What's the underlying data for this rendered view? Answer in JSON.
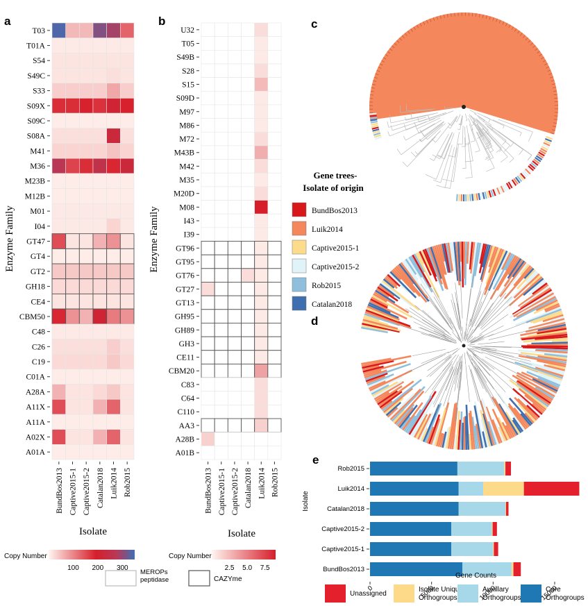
{
  "panels": {
    "a": "a",
    "b": "b",
    "c": "c",
    "d": "d",
    "e": "e"
  },
  "heatmap_common": {
    "x_title": "Isolate",
    "y_title": "Enzyme Family",
    "isolates": [
      "BundBos2013",
      "Captive2015-1",
      "Captive2015-2",
      "Catalan2018",
      "Luik2014",
      "Rob2015"
    ]
  },
  "legends": {
    "a": {
      "title": "Copy Number",
      "ticks": [
        100,
        200,
        300
      ],
      "range": [
        0,
        350
      ],
      "box_label": "MEROPs peptidase"
    },
    "b": {
      "title": "Copy Number",
      "ticks": [
        2.5,
        5.0,
        7.5
      ],
      "tick_labels": [
        "2.5",
        "5.0",
        "7.5"
      ],
      "range": [
        0,
        9
      ],
      "box_label": "CAZYme"
    },
    "gene_trees": {
      "title_line1": "Gene trees-",
      "title_line2": "Isolate of origin",
      "items": [
        {
          "label": "BundBos2013",
          "color": "#d7191c"
        },
        {
          "label": "Luik2014",
          "color": "#f4875b"
        },
        {
          "label": "Captive2015-1",
          "color": "#fddb8c"
        },
        {
          "label": "Captive2015-2",
          "color": "#e0f3f8"
        },
        {
          "label": "Rob2015",
          "color": "#8fbfdc"
        },
        {
          "label": "Catalan2018",
          "color": "#3f6fae"
        }
      ]
    },
    "e": {
      "items": [
        {
          "label1": "Unassigned",
          "label2": "",
          "color": "#e3202c"
        },
        {
          "label1": "Isolate Unique",
          "label2": "Orthogroups",
          "color": "#fdd98a"
        },
        {
          "label1": "Auxillary",
          "label2": "Orthogroups",
          "color": "#a6d8ea"
        },
        {
          "label1": "Core",
          "label2": "Orthogroups",
          "color": "#1f78b4"
        }
      ]
    }
  },
  "chart_data": [
    {
      "type": "heatmap",
      "panel": "a",
      "xlabel": "Isolate",
      "ylabel": "Enzyme Family",
      "x": [
        "BundBos2013",
        "Captive2015-1",
        "Captive2015-2",
        "Catalan2018",
        "Luik2014",
        "Rob2015"
      ],
      "y": [
        "T03",
        "T01A",
        "S54",
        "S49C",
        "S33",
        "S09X",
        "S09C",
        "S08A",
        "M41",
        "M36",
        "M23B",
        "M12B",
        "M01",
        "I04",
        "GT47",
        "GT4",
        "GT2",
        "GH18",
        "CE4",
        "CBM50",
        "C48",
        "C26",
        "C19",
        "C01A",
        "A28A",
        "A11X",
        "A11A",
        "A02X",
        "A01A"
      ],
      "values": [
        [
          340,
          55,
          55,
          310,
          290,
          130
        ],
        [
          10,
          10,
          10,
          10,
          10,
          10
        ],
        [
          15,
          15,
          15,
          15,
          15,
          15
        ],
        [
          15,
          15,
          15,
          15,
          20,
          15
        ],
        [
          35,
          35,
          35,
          35,
          70,
          35
        ],
        [
          180,
          180,
          190,
          175,
          210,
          190
        ],
        [
          8,
          8,
          8,
          8,
          8,
          8
        ],
        [
          20,
          20,
          20,
          20,
          225,
          20
        ],
        [
          30,
          30,
          30,
          30,
          45,
          30
        ],
        [
          270,
          160,
          180,
          250,
          185,
          225
        ],
        [
          8,
          8,
          8,
          8,
          8,
          8
        ],
        [
          8,
          8,
          8,
          8,
          8,
          8
        ],
        [
          12,
          12,
          12,
          12,
          12,
          12
        ],
        [
          12,
          12,
          12,
          12,
          30,
          12
        ],
        [
          150,
          15,
          15,
          60,
          90,
          15
        ],
        [
          8,
          8,
          8,
          8,
          8,
          8
        ],
        [
          40,
          40,
          40,
          40,
          40,
          40
        ],
        [
          25,
          25,
          25,
          25,
          25,
          25
        ],
        [
          15,
          15,
          15,
          15,
          15,
          15
        ],
        [
          185,
          90,
          60,
          210,
          110,
          90
        ],
        [
          10,
          10,
          10,
          10,
          10,
          10
        ],
        [
          20,
          20,
          20,
          20,
          35,
          20
        ],
        [
          25,
          25,
          25,
          25,
          40,
          25
        ],
        [
          8,
          8,
          8,
          8,
          8,
          8
        ],
        [
          60,
          15,
          15,
          25,
          40,
          15
        ],
        [
          150,
          15,
          15,
          60,
          130,
          15
        ],
        [
          8,
          8,
          8,
          8,
          8,
          8
        ],
        [
          150,
          15,
          15,
          60,
          130,
          15
        ],
        [
          8,
          8,
          8,
          8,
          8,
          8
        ]
      ],
      "scale_max": 350,
      "framed_rows": [
        "GT47",
        "GT4",
        "GT2",
        "GH18",
        "CE4",
        "CBM50"
      ]
    },
    {
      "type": "heatmap",
      "panel": "b",
      "xlabel": "Isolate",
      "ylabel": "Enzyme Family",
      "x": [
        "BundBos2013",
        "Captive2015-1",
        "Captive2015-2",
        "Catalan2018",
        "Luik2014",
        "Rob2015"
      ],
      "y": [
        "U32",
        "T05",
        "S49B",
        "S28",
        "S15",
        "S09D",
        "M97",
        "M86",
        "M72",
        "M43B",
        "M42",
        "M35",
        "M20D",
        "M08",
        "I43",
        "I39",
        "GT96",
        "GT95",
        "GT76",
        "GT27",
        "GT13",
        "GH95",
        "GH89",
        "GH3",
        "CE11",
        "CBM20",
        "C83",
        "C64",
        "C110",
        "AA3",
        "A28B",
        "A01B"
      ],
      "values": [
        [
          0,
          0,
          0,
          0,
          1,
          0
        ],
        [
          0,
          0,
          0,
          0,
          0.5,
          0
        ],
        [
          0,
          0,
          0,
          0,
          0.5,
          0
        ],
        [
          0,
          0,
          0,
          0,
          1,
          0
        ],
        [
          0,
          0,
          0,
          0,
          2.5,
          0
        ],
        [
          0,
          0,
          0,
          0,
          0.5,
          0
        ],
        [
          0,
          0,
          0,
          0,
          0.5,
          0
        ],
        [
          0,
          0,
          0,
          0,
          0.5,
          0
        ],
        [
          0,
          0,
          0,
          0,
          1,
          0
        ],
        [
          0,
          0,
          0,
          0,
          3,
          0
        ],
        [
          0,
          0,
          0,
          0,
          1,
          0
        ],
        [
          0,
          0,
          0,
          0,
          0.5,
          0
        ],
        [
          0,
          0,
          0,
          0,
          1,
          0
        ],
        [
          0,
          0,
          0,
          0,
          9,
          0
        ],
        [
          0,
          0,
          0,
          0,
          0.5,
          0
        ],
        [
          0,
          0,
          0,
          0,
          0.5,
          0
        ],
        [
          0,
          0,
          0,
          0,
          0.5,
          0
        ],
        [
          0,
          0,
          0,
          0,
          0.5,
          0
        ],
        [
          0,
          0,
          0,
          1,
          0.5,
          0
        ],
        [
          1,
          0,
          0,
          0,
          0.5,
          0
        ],
        [
          0,
          0,
          0,
          0,
          0.5,
          0
        ],
        [
          0,
          0,
          0,
          0,
          0.5,
          0
        ],
        [
          0,
          0,
          0,
          0,
          0.5,
          0
        ],
        [
          0,
          0,
          0,
          0,
          0.5,
          0
        ],
        [
          0,
          0,
          0,
          0,
          0.5,
          0
        ],
        [
          0,
          0,
          0,
          0,
          3.5,
          0
        ],
        [
          0,
          0,
          0,
          0,
          1,
          0
        ],
        [
          0,
          0,
          0,
          0,
          1,
          0
        ],
        [
          0,
          0,
          0,
          0,
          1,
          0
        ],
        [
          0,
          0,
          0,
          0,
          1.5,
          0
        ],
        [
          1.5,
          0,
          0,
          0,
          0,
          0
        ],
        [
          0,
          0,
          0,
          0,
          0,
          0
        ]
      ],
      "scale_max": 9,
      "framed_rows": [
        "GT96",
        "GT95",
        "GT76",
        "GT27",
        "GT13",
        "GH95",
        "GH89",
        "GH3",
        "CE11",
        "CBM20",
        "AA3"
      ]
    },
    {
      "type": "bar",
      "panel": "e",
      "orientation": "horizontal",
      "stacked": true,
      "xlabel": "Gene Counts",
      "ylabel": "Isolate",
      "categories": [
        "Rob2015",
        "Luik2014",
        "Catalan2018",
        "Captive2015-2",
        "Captive2015-1",
        "BundBos2013"
      ],
      "xlim": [
        0,
        17200
      ],
      "xticks": [
        0,
        5000,
        10000,
        15000
      ],
      "series": [
        {
          "name": "Core Orthogroups",
          "color": "#1f78b4",
          "values": [
            7100,
            7200,
            7200,
            6600,
            6600,
            7500
          ]
        },
        {
          "name": "Auxillary Orthogroups",
          "color": "#a6d8ea",
          "values": [
            3800,
            2000,
            3800,
            3300,
            3400,
            4000
          ]
        },
        {
          "name": "Isolate Unique Orthogroups",
          "color": "#fdd98a",
          "values": [
            100,
            3300,
            50,
            60,
            60,
            150
          ]
        },
        {
          "name": "Unassigned",
          "color": "#e3202c",
          "values": [
            450,
            4500,
            200,
            350,
            350,
            600
          ]
        }
      ]
    }
  ]
}
